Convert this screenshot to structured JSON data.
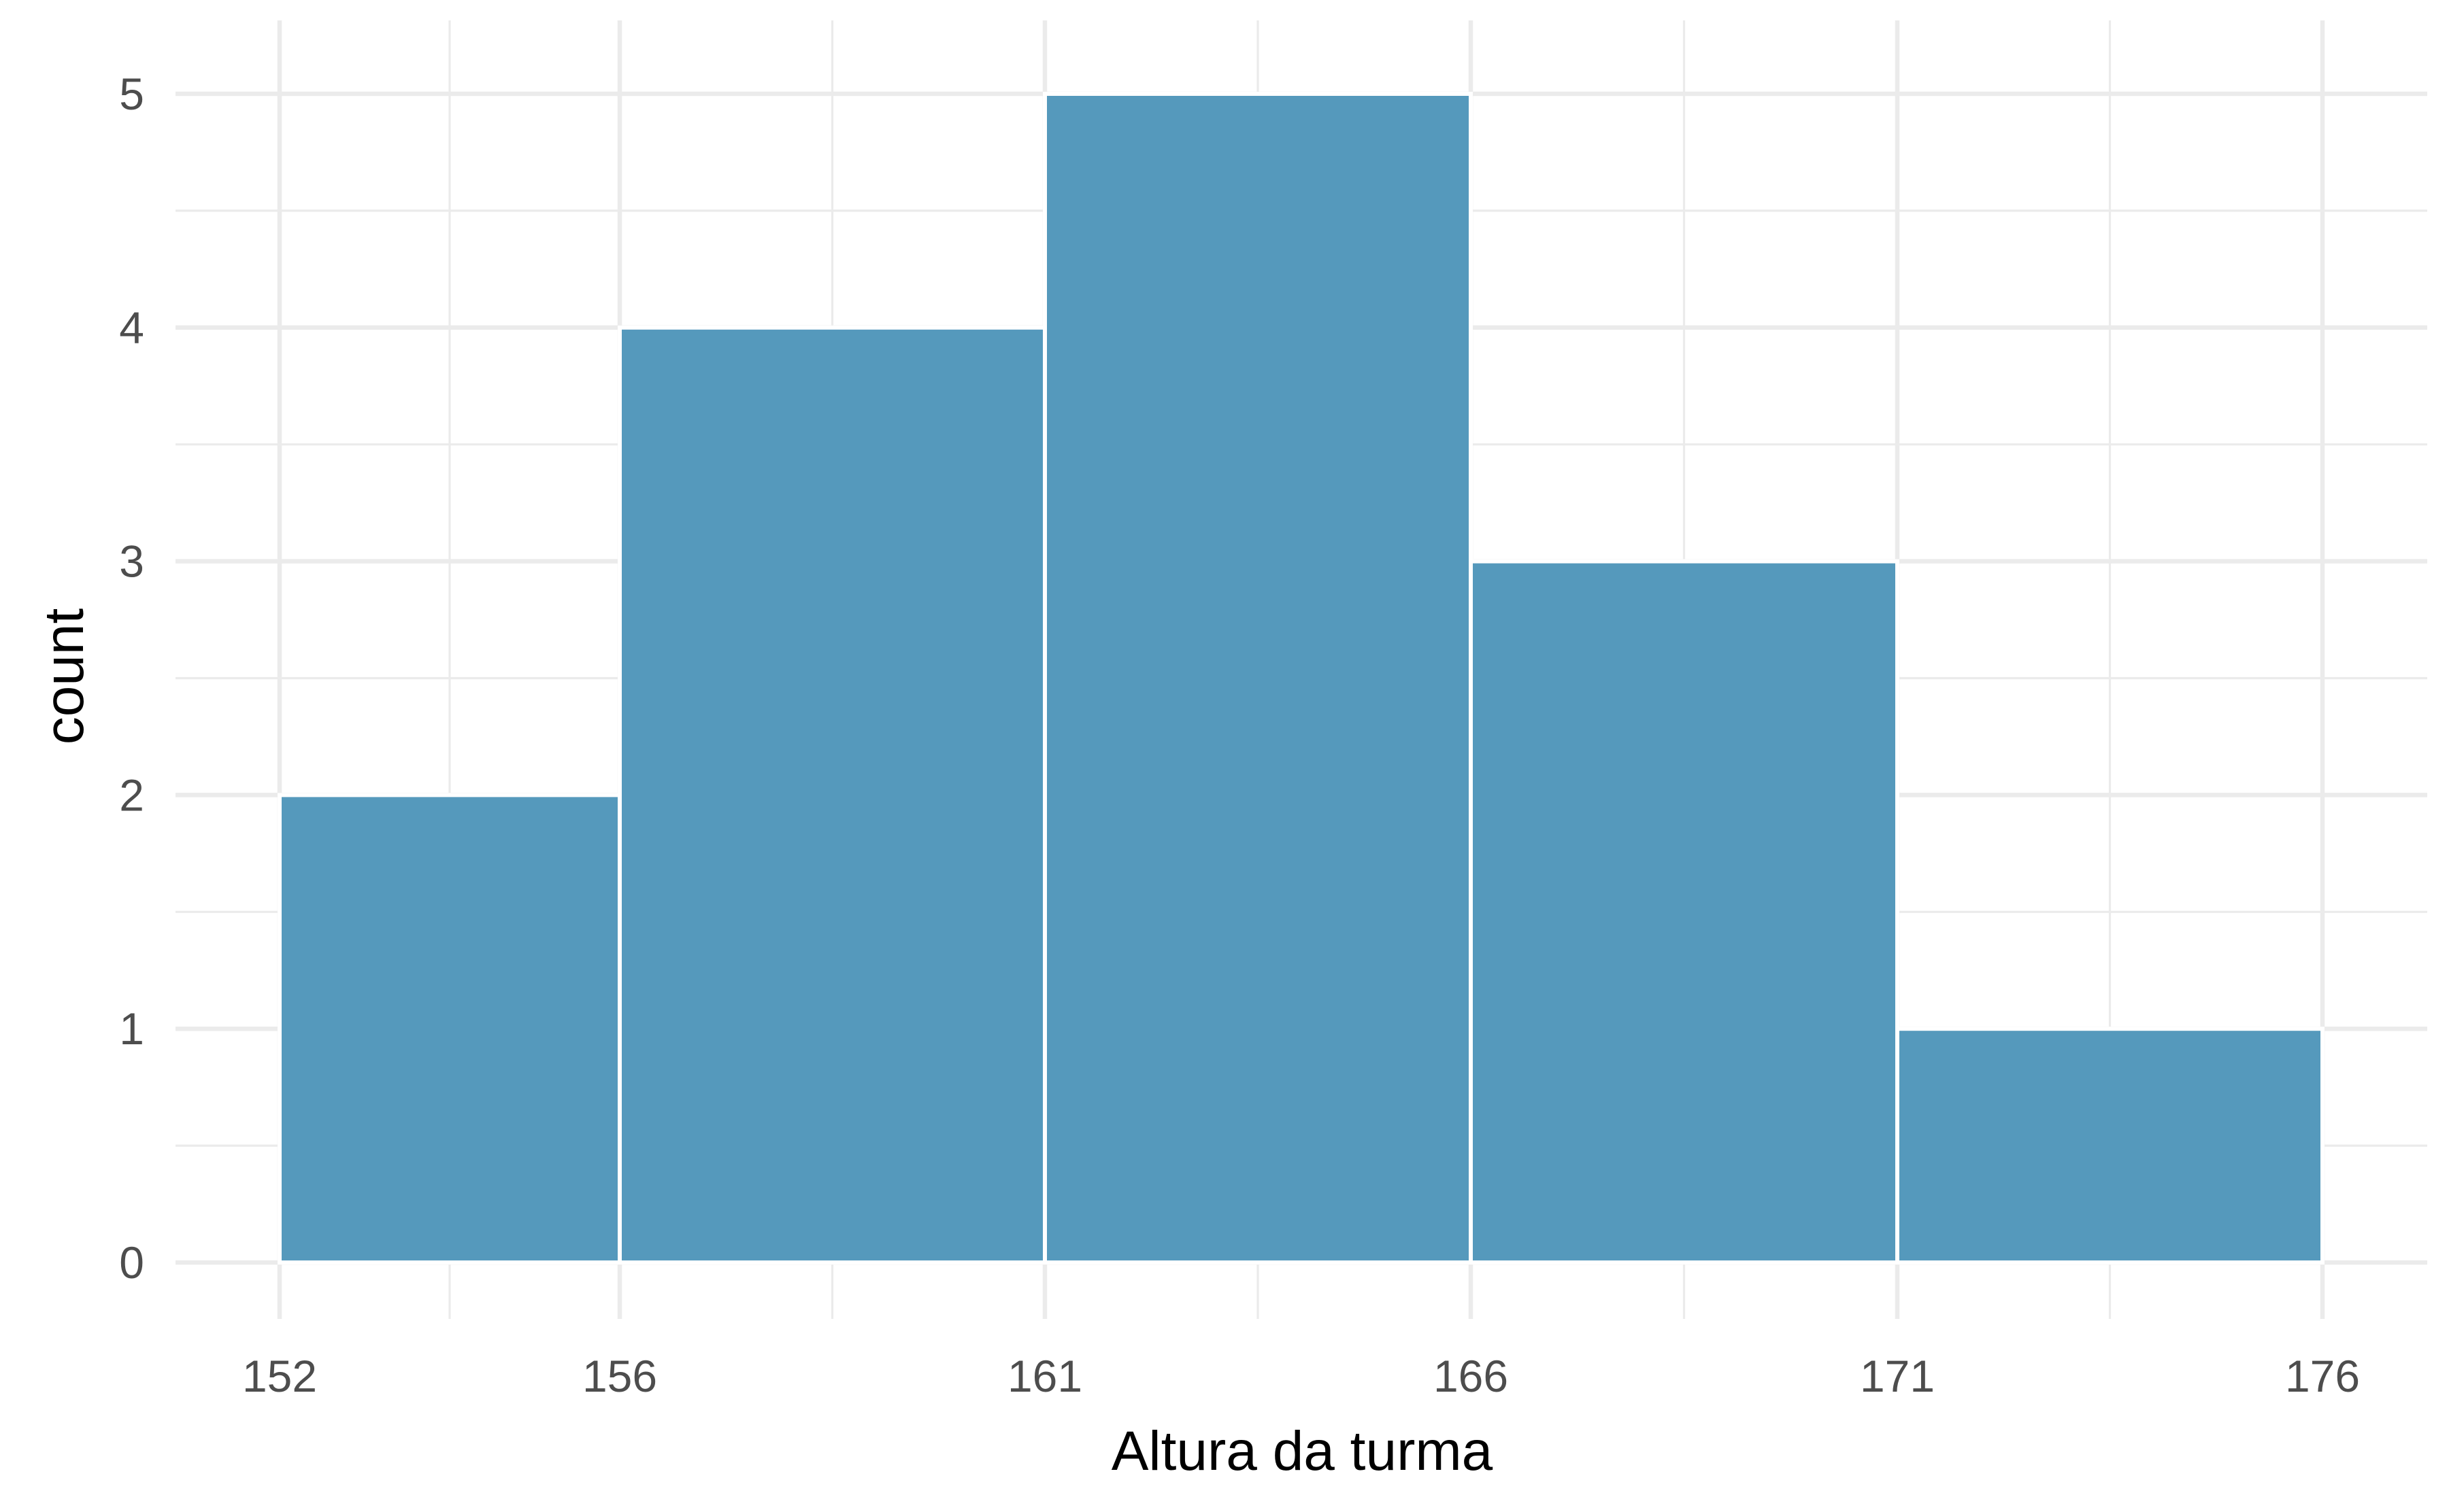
{
  "chart_data": {
    "type": "bar",
    "subtype": "histogram",
    "bins": [
      {
        "start": 152,
        "end": 156,
        "count": 2
      },
      {
        "start": 156,
        "end": 161,
        "count": 4
      },
      {
        "start": 161,
        "end": 166,
        "count": 5
      },
      {
        "start": 166,
        "end": 171,
        "count": 3
      },
      {
        "start": 171,
        "end": 176,
        "count": 1
      }
    ],
    "x_ticks": [
      152,
      156,
      161,
      166,
      171,
      176
    ],
    "y_ticks": [
      0,
      1,
      2,
      3,
      4,
      5
    ],
    "xlabel": "Altura da turma",
    "ylabel": "count",
    "ylim": [
      0,
      5
    ],
    "grid": true,
    "legend": "none",
    "colors": {
      "bar_fill": "#5599bc",
      "bar_outline": "#ffffff",
      "grid": "#ebebeb",
      "tick_text": "#4d4d4d",
      "axis_title": "#000000"
    }
  }
}
